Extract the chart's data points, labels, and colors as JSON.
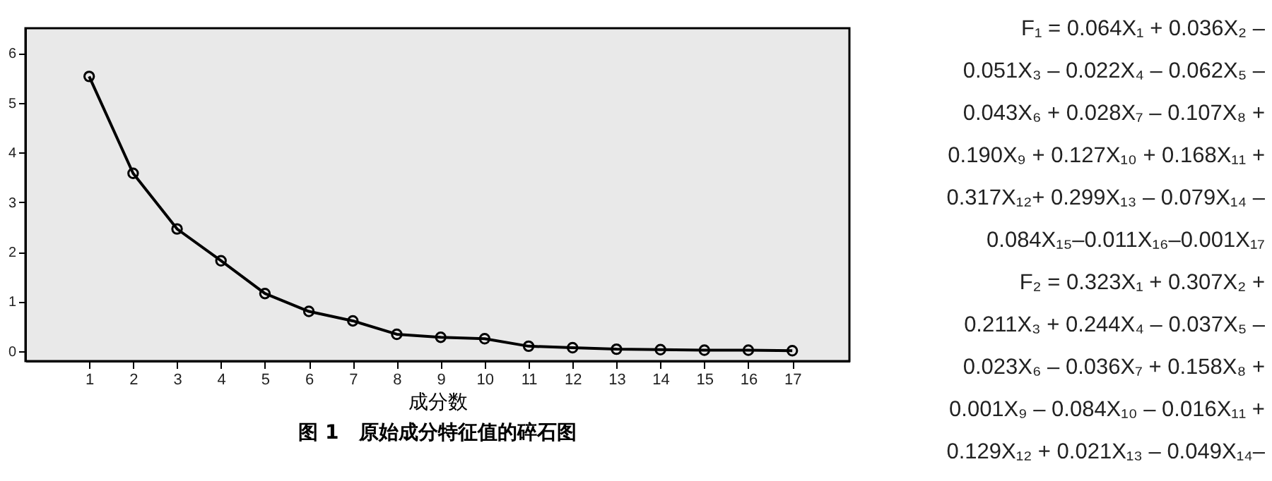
{
  "chart_data": {
    "type": "line",
    "title": "图 1　原始成分特征值的碎石图",
    "xlabel": "成分数",
    "x": [
      1,
      2,
      3,
      4,
      5,
      6,
      7,
      8,
      9,
      10,
      11,
      12,
      13,
      14,
      15,
      16,
      17
    ],
    "xlim": [
      -0.45,
      18.3
    ],
    "xticks": [
      1,
      2,
      3,
      4,
      5,
      6,
      7,
      8,
      9,
      10,
      11,
      12,
      13,
      14,
      15,
      16,
      17
    ],
    "series": [
      {
        "color": "#000000",
        "values": [
          5.53,
          3.58,
          2.46,
          1.82,
          1.16,
          0.8,
          0.61,
          0.34,
          0.28,
          0.25,
          0.1,
          0.07,
          0.04,
          0.03,
          0.02,
          0.02,
          0.01
        ]
      }
    ],
    "ylim": [
      -0.2,
      6.5
    ],
    "yticks": [
      0,
      1,
      2,
      3,
      4,
      5,
      6
    ],
    "grid": false,
    "marker": "circle",
    "line_style": "solid",
    "annotations": [
      "F₁ = 0.064X₁ + 0.036X₂ –",
      "0.051X₃ – 0.022X₄ – 0.062X₅ –",
      "0.043X₆ + 0.028X₇ – 0.107X₈ +",
      "0.190X₉ + 0.127X₁₀ + 0.168X₁₁ +",
      "0.317X₁₂+ 0.299X₁₃ – 0.079X₁₄ –",
      "0.084X₁₅–0.011X₁₆–0.001X₁₇",
      "F₂ = 0.323X₁ + 0.307X₂ +",
      "0.211X₃ + 0.244X₄ – 0.037X₅ –",
      "0.023X₆ – 0.036X₇ + 0.158X₈ +",
      "0.001X₉ – 0.084X₁₀ – 0.016X₁₁ +",
      "0.129X₁₂ + 0.021X₁₃ – 0.049X₁₄–"
    ]
  }
}
